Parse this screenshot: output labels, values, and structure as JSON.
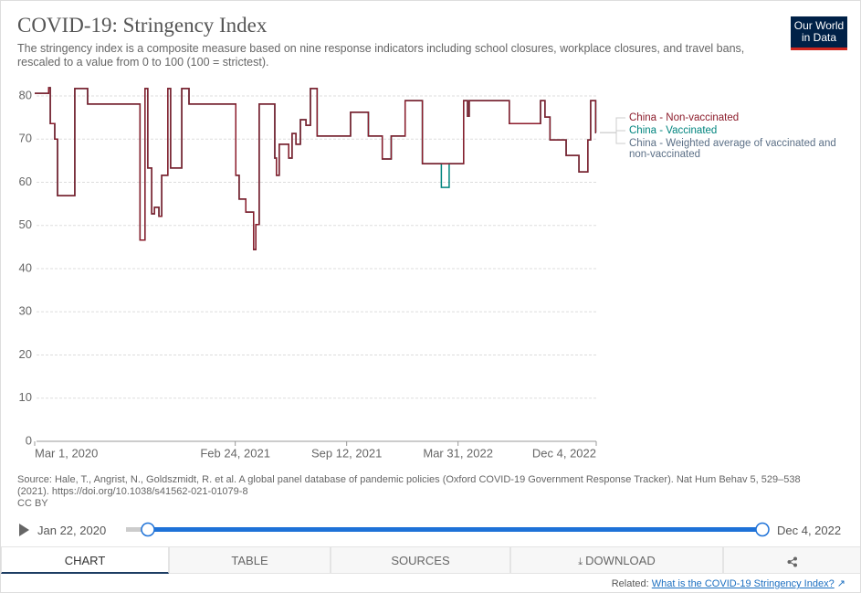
{
  "chart_data": {
    "type": "line",
    "title": "COVID-19: Stringency Index",
    "subtitle": "The stringency index is a composite measure based on nine response indicators including school closures, workplace closures, and travel bans, rescaled to a value from 0 to 100 (100 = strictest).",
    "x": [
      "2020-03-01",
      "2020-03-26",
      "2020-03-29",
      "2020-04-06",
      "2020-04-11",
      "2020-05-12",
      "2020-06-04",
      "2020-09-06",
      "2020-09-15",
      "2020-09-20",
      "2020-09-27",
      "2020-10-02",
      "2020-10-10",
      "2020-10-15",
      "2020-10-26",
      "2020-10-31",
      "2020-11-20",
      "2020-12-03",
      "2021-02-25",
      "2021-03-03",
      "2021-03-15",
      "2021-03-29",
      "2021-04-02",
      "2021-04-08",
      "2021-05-06",
      "2021-05-09",
      "2021-05-14",
      "2021-05-31",
      "2021-06-06",
      "2021-06-13",
      "2021-06-21",
      "2021-07-01",
      "2021-07-09",
      "2021-07-21",
      "2021-09-19",
      "2021-10-21",
      "2021-11-15",
      "2021-12-01",
      "2021-12-26",
      "2022-01-26",
      "2022-03-01",
      "2022-03-15",
      "2022-04-10",
      "2022-04-17",
      "2022-04-20",
      "2022-07-01",
      "2022-08-26",
      "2022-09-03",
      "2022-09-12",
      "2022-10-11",
      "2022-11-03",
      "2022-11-19",
      "2022-11-24",
      "2022-12-03",
      "2022-12-04"
    ],
    "series": [
      {
        "name": "China - Weighted average of vaccinated and non-vaccinated",
        "color": "#5b6f86",
        "values": [
          80.6,
          81.9,
          73.6,
          70,
          56.9,
          81.7,
          78.1,
          46.6,
          81.7,
          63.3,
          52.7,
          54.2,
          52.1,
          61.6,
          81.7,
          63.3,
          81.7,
          78.1,
          61.6,
          56.1,
          53.1,
          44.4,
          50.2,
          78.1,
          65.6,
          61.6,
          68.8,
          65.6,
          71.3,
          68.8,
          74.5,
          73.2,
          81.7,
          70.7,
          76.2,
          70.7,
          65.4,
          70.7,
          78.9,
          64.3,
          64.3,
          64.3,
          78.9,
          75.3,
          78.9,
          73.6,
          78.9,
          75.1,
          69.8,
          66.2,
          62.4,
          69.8,
          78.9,
          71.5,
          71.5
        ]
      },
      {
        "name": "China - Vaccinated",
        "color": "#00847e",
        "values": [
          80.6,
          81.9,
          73.6,
          70,
          56.9,
          81.7,
          78.1,
          46.6,
          81.7,
          63.3,
          52.7,
          54.2,
          52.1,
          61.6,
          81.7,
          63.3,
          81.7,
          78.1,
          61.6,
          56.1,
          53.1,
          44.4,
          50.2,
          78.1,
          65.6,
          61.6,
          68.8,
          65.6,
          71.3,
          68.8,
          74.5,
          73.2,
          81.7,
          70.7,
          76.2,
          70.7,
          65.4,
          70.7,
          78.9,
          64.3,
          58.8,
          64.3,
          78.9,
          75.3,
          78.9,
          73.6,
          78.9,
          75.1,
          69.8,
          66.2,
          62.4,
          69.8,
          78.9,
          71.5,
          71.5
        ]
      },
      {
        "name": "China - Non-vaccinated",
        "color": "#8c1c2b",
        "values": [
          80.6,
          81.9,
          73.6,
          70,
          56.9,
          81.7,
          78.1,
          46.6,
          81.7,
          63.3,
          52.7,
          54.2,
          52.1,
          61.6,
          81.7,
          63.3,
          81.7,
          78.1,
          61.6,
          56.1,
          53.1,
          44.4,
          50.2,
          78.1,
          65.6,
          61.6,
          68.8,
          65.6,
          71.3,
          68.8,
          74.5,
          73.2,
          81.7,
          70.7,
          76.2,
          70.7,
          65.4,
          70.7,
          78.9,
          64.3,
          64.3,
          64.3,
          78.9,
          75.3,
          78.9,
          73.6,
          78.9,
          75.1,
          69.8,
          66.2,
          62.4,
          69.8,
          78.9,
          71.5,
          71.5
        ]
      }
    ],
    "xlim": [
      "2020-03-01",
      "2022-12-04"
    ],
    "xticks": [
      {
        "value": "2020-03-01",
        "label": "Mar 1, 2020"
      },
      {
        "value": "2021-02-24",
        "label": "Feb 24, 2021"
      },
      {
        "value": "2021-09-12",
        "label": "Sep 12, 2021"
      },
      {
        "value": "2022-03-31",
        "label": "Mar 31, 2022"
      },
      {
        "value": "2022-12-04",
        "label": "Dec 4, 2022"
      }
    ],
    "ylim": [
      0,
      82
    ],
    "yticks": [
      0,
      10,
      20,
      30,
      40,
      50,
      60,
      70,
      80
    ],
    "grid": true
  },
  "logo": [
    "Our World",
    "in Data"
  ],
  "source": "Source: Hale, T., Angrist, N., Goldszmidt, R. et al. A global panel database of pandemic policies (Oxford COVID-19 Government Response Tracker). Nat Hum Behav 5, 529–538 (2021). https://doi.org/10.1038/s41562-021-01079-8",
  "license": "CC BY",
  "timeline": {
    "start": "Jan 22, 2020",
    "end": "Dec 4, 2022"
  },
  "tabs": [
    "CHART",
    "TABLE",
    "SOURCES",
    "DOWNLOAD"
  ],
  "related": {
    "label": "Related:",
    "link": "What is the COVID-19 Stringency Index?"
  }
}
